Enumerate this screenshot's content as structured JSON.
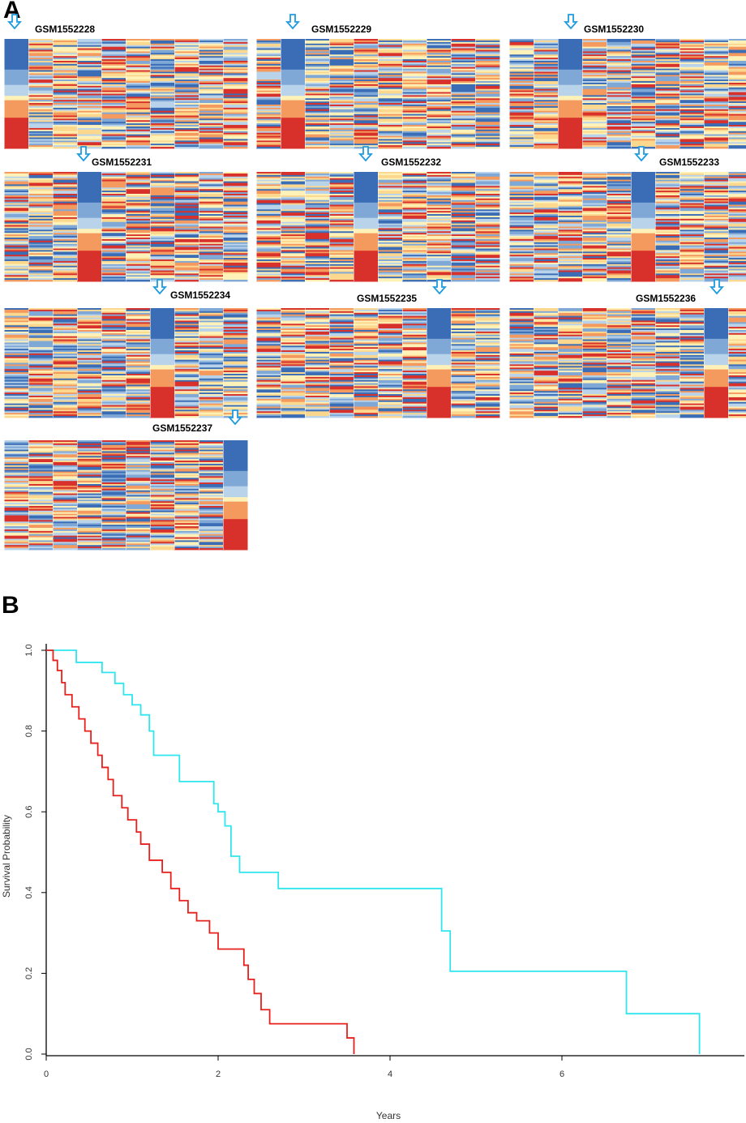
{
  "panels": {
    "a": "A",
    "b": "B"
  },
  "heatmaps": {
    "samples": [
      "GSM1552228",
      "GSM1552229",
      "GSM1552230",
      "GSM1552231",
      "GSM1552232",
      "GSM1552233",
      "GSM1552234",
      "GSM1552235",
      "GSM1552236",
      "GSM1552237"
    ],
    "highlight_column": [
      0,
      1,
      2,
      3,
      4,
      5,
      6,
      7,
      8,
      9
    ],
    "columns_per_map": 10,
    "rows_per_map": 70,
    "colors": {
      "low": "#3a6db5",
      "mid_low": "#7fa8d6",
      "mid": "#fff2b8",
      "mid_high": "#f49a5e",
      "high": "#d8302a",
      "arrow": "#1e9be0"
    }
  },
  "chart_data": {
    "type": "line",
    "title": "",
    "xlabel": "Years",
    "ylabel": "Survival Probability",
    "xlim": [
      0,
      8
    ],
    "ylim": [
      0,
      1
    ],
    "xticks": [
      0,
      2,
      4,
      6
    ],
    "yticks": [
      0.0,
      0.2,
      0.4,
      0.6,
      0.8,
      1.0
    ],
    "series": [
      {
        "name": "cyan group",
        "color": "#2ee6ee",
        "x": [
          0,
          0.35,
          0.65,
          0.8,
          0.9,
          1.0,
          1.1,
          1.2,
          1.25,
          1.55,
          1.95,
          2.0,
          2.08,
          2.15,
          2.25,
          2.3,
          2.7,
          4.6,
          4.7,
          6.75,
          7.6
        ],
        "y": [
          1.0,
          0.97,
          0.945,
          0.918,
          0.89,
          0.865,
          0.84,
          0.8,
          0.74,
          0.675,
          0.62,
          0.6,
          0.565,
          0.49,
          0.45,
          0.45,
          0.41,
          0.305,
          0.205,
          0.1,
          0.0
        ]
      },
      {
        "name": "red group",
        "color": "#e8201c",
        "x": [
          0,
          0.08,
          0.13,
          0.18,
          0.22,
          0.3,
          0.38,
          0.45,
          0.52,
          0.6,
          0.65,
          0.72,
          0.78,
          0.88,
          0.95,
          1.05,
          1.1,
          1.2,
          1.35,
          1.45,
          1.55,
          1.65,
          1.75,
          1.9,
          2.0,
          2.2,
          2.3,
          2.35,
          2.42,
          2.5,
          2.6,
          3.5,
          3.58
        ],
        "y": [
          1.0,
          0.975,
          0.95,
          0.92,
          0.89,
          0.86,
          0.83,
          0.8,
          0.77,
          0.74,
          0.71,
          0.68,
          0.64,
          0.61,
          0.58,
          0.55,
          0.52,
          0.48,
          0.45,
          0.41,
          0.38,
          0.35,
          0.33,
          0.3,
          0.26,
          0.26,
          0.22,
          0.185,
          0.15,
          0.11,
          0.075,
          0.04,
          0.0
        ]
      }
    ]
  }
}
